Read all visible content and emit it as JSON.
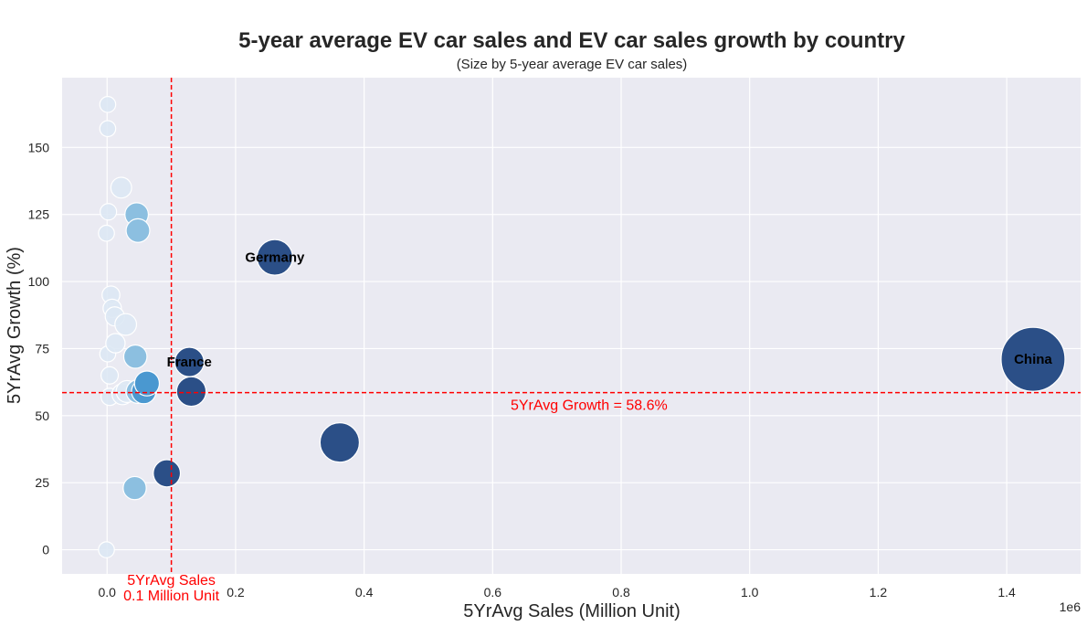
{
  "chart_data": {
    "type": "scatter",
    "title": "5-year average EV car sales and EV car sales growth by country",
    "subtitle": "(Size by 5-year average EV car sales)",
    "xlabel": "5YrAvg Sales (Million Unit)",
    "ylabel": "5YrAvg Growth (%)",
    "x_offset_label": "1e6",
    "xlim": [
      -70000,
      1515000
    ],
    "ylim": [
      -9,
      176
    ],
    "x_ticks": [
      0,
      200000,
      400000,
      600000,
      800000,
      1000000,
      1200000,
      1400000
    ],
    "x_tick_labels": [
      "0.0",
      "0.2",
      "0.4",
      "0.6",
      "0.8",
      "1.0",
      "1.2",
      "1.4"
    ],
    "y_ticks": [
      0,
      25,
      50,
      75,
      100,
      125,
      150
    ],
    "y_tick_labels": [
      "0",
      "25",
      "50",
      "75",
      "100",
      "125",
      "150"
    ],
    "grid": true,
    "background": "#eaeaf2",
    "grid_color": "#ffffff",
    "colors": {
      "light": "#dde8f4",
      "mid": "#8cbfe0",
      "blue": "#4a98d0",
      "dark": "#2b4f87",
      "reference": "#ff0000"
    },
    "reference_lines": [
      {
        "axis": "x",
        "value": 100000,
        "label_lines": [
          "5YrAvg Sales",
          "0.1 Million Unit"
        ]
      },
      {
        "axis": "y",
        "value": 58.6,
        "label": "5YrAvg Growth = 58.6%"
      }
    ],
    "points": [
      {
        "x": 1000,
        "y": 166,
        "size": 1000,
        "tone": "light"
      },
      {
        "x": 1000,
        "y": 157,
        "size": 1000,
        "tone": "light"
      },
      {
        "x": 22000,
        "y": 135,
        "size": 22000,
        "tone": "light"
      },
      {
        "x": 2000,
        "y": 126,
        "size": 2000,
        "tone": "light"
      },
      {
        "x": -1000,
        "y": 118,
        "size": 1000,
        "tone": "light"
      },
      {
        "x": 46000,
        "y": 125,
        "size": 46000,
        "tone": "mid"
      },
      {
        "x": 48000,
        "y": 119,
        "size": 48000,
        "tone": "mid"
      },
      {
        "x": 6000,
        "y": 95,
        "size": 6000,
        "tone": "light"
      },
      {
        "x": 8000,
        "y": 90,
        "size": 8000,
        "tone": "light"
      },
      {
        "x": 12000,
        "y": 87,
        "size": 12000,
        "tone": "light"
      },
      {
        "x": 29000,
        "y": 84,
        "size": 29000,
        "tone": "light"
      },
      {
        "x": 13000,
        "y": 77,
        "size": 13000,
        "tone": "light"
      },
      {
        "x": 1000,
        "y": 73,
        "size": 1000,
        "tone": "light"
      },
      {
        "x": 44000,
        "y": 72,
        "size": 44000,
        "tone": "mid"
      },
      {
        "x": 4000,
        "y": 65,
        "size": 4000,
        "tone": "light"
      },
      {
        "x": 62000,
        "y": 62,
        "size": 62000,
        "tone": "blue"
      },
      {
        "x": 48000,
        "y": 59,
        "size": 48000,
        "tone": "mid"
      },
      {
        "x": 57000,
        "y": 59,
        "size": 57000,
        "tone": "blue"
      },
      {
        "x": 31000,
        "y": 59,
        "size": 31000,
        "tone": "light"
      },
      {
        "x": 24000,
        "y": 58,
        "size": 24000,
        "tone": "light"
      },
      {
        "x": 4000,
        "y": 57,
        "size": 4000,
        "tone": "light"
      },
      {
        "x": 43000,
        "y": 23,
        "size": 43000,
        "tone": "mid"
      },
      {
        "x": -1000,
        "y": 0,
        "size": 1000,
        "tone": "light"
      },
      {
        "x": 93000,
        "y": 28.5,
        "size": 93000,
        "tone": "dark"
      },
      {
        "x": 128000,
        "y": 70,
        "size": 128000,
        "tone": "dark",
        "label": "France"
      },
      {
        "x": 131000,
        "y": 59,
        "size": 131000,
        "tone": "dark"
      },
      {
        "x": 261000,
        "y": 109,
        "size": 261000,
        "tone": "dark",
        "label": "Germany"
      },
      {
        "x": 362000,
        "y": 40,
        "size": 362000,
        "tone": "dark"
      },
      {
        "x": 1441000,
        "y": 71,
        "size": 1441000,
        "tone": "dark",
        "label": "China"
      }
    ]
  }
}
